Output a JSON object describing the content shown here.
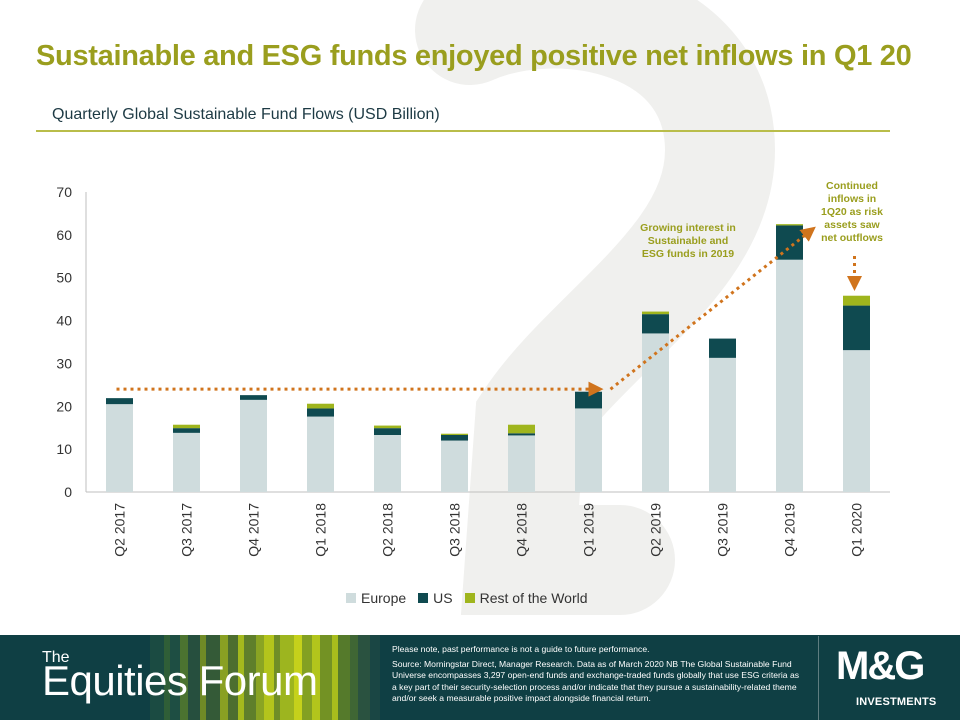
{
  "slide": {
    "title": "Sustainable and ESG funds enjoyed positive net inflows in Q1 20",
    "subtitle": "Quarterly Global Sustainable Fund Flows (USD Billion)"
  },
  "chart_data": {
    "type": "bar",
    "stacked": true,
    "categories": [
      "Q2 2017",
      "Q3 2017",
      "Q4 2017",
      "Q1 2018",
      "Q2 2018",
      "Q3 2018",
      "Q4 2018",
      "Q1 2019",
      "Q2 2019",
      "Q3 2019",
      "Q4 2019",
      "Q1 2020"
    ],
    "series": [
      {
        "name": "Europe",
        "color": "#cfdcdd",
        "values": [
          20.5,
          13.8,
          21.5,
          17.6,
          13.3,
          12.0,
          13.2,
          19.5,
          37.0,
          31.3,
          54.2,
          33.1
        ]
      },
      {
        "name": "US",
        "color": "#0f4a50",
        "values": [
          1.4,
          1.1,
          1.1,
          1.9,
          1.6,
          1.3,
          0.5,
          3.9,
          4.5,
          4.5,
          8.0,
          10.4
        ]
      },
      {
        "name": "Rest of the World",
        "color": "#9fb51d",
        "values": [
          0.0,
          0.8,
          0.0,
          1.1,
          0.6,
          0.3,
          2.0,
          0.0,
          0.6,
          0.0,
          0.3,
          2.3
        ]
      }
    ],
    "yticks": [
      0,
      10,
      20,
      30,
      40,
      50,
      60,
      70
    ],
    "ylim": [
      0,
      70
    ],
    "annotations": [
      {
        "text": [
          "Growing interest in",
          "Sustainable and",
          "ESG funds in 2019"
        ]
      },
      {
        "text": [
          "Continued",
          "inflows in",
          "1Q20 as risk",
          "assets saw",
          "net outflows"
        ]
      }
    ],
    "trend_lines": {
      "color": "#d0741d",
      "flat_level": 24,
      "rise_from": "Q1 2019",
      "rise_to": "Q4 2019"
    },
    "legend_position": "bottom"
  },
  "footer": {
    "brand_small": "The",
    "brand_large": "Equities Forum",
    "disclaimer_1": "Please note, past performance is not a guide to future performance.",
    "disclaimer_2": "Source: Morningstar Direct, Manager Research. Data as of March 2020 NB The Global Sustainable Fund Universe encompasses 3,297 open-end funds and exchange-traded funds globally that use ESG criteria as a key part of their security-selection process and/or indicate that they pursue a sustainability-related theme and/or seek a measurable positive impact alongside financial return.",
    "logo_mark": "M&G",
    "logo_sub": "INVESTMENTS"
  },
  "colors": {
    "title": "#9a9e1e",
    "footer_bg": "#0f3f44",
    "arrow": "#d0741d"
  }
}
